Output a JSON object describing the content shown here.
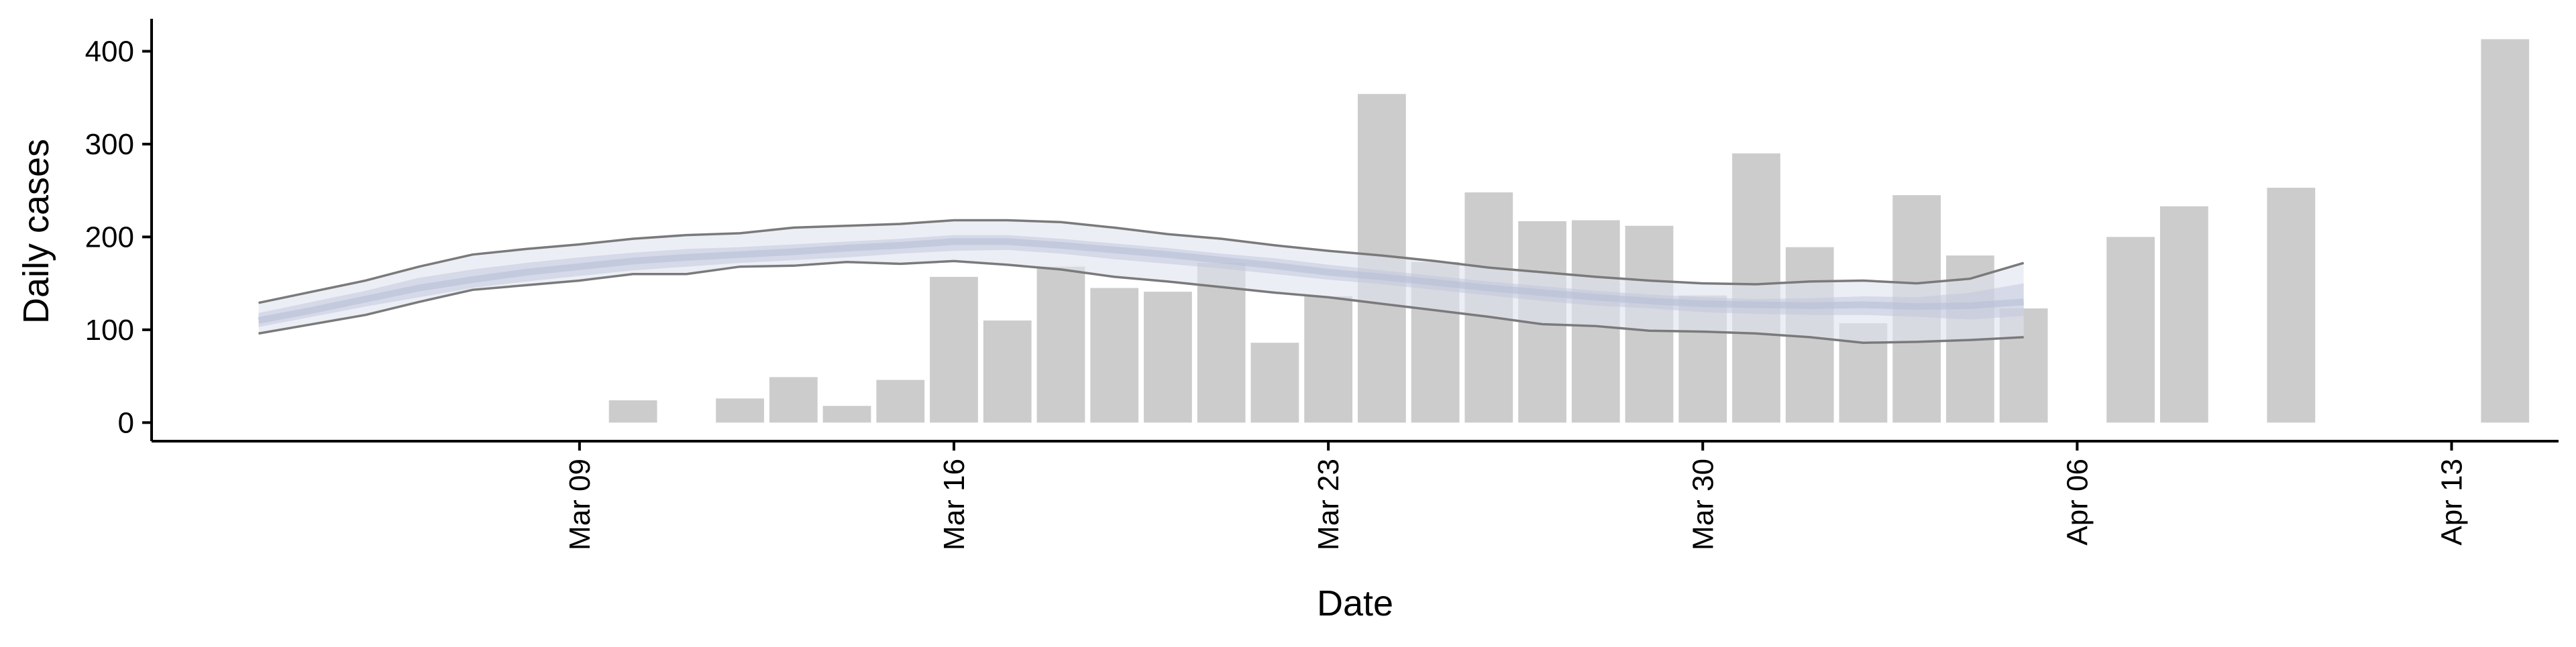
{
  "chart_data": {
    "type": "bar",
    "xlabel": "Date",
    "ylabel": "Daily cases",
    "ylim": [
      -20,
      435
    ],
    "xlim": [
      "2020-03-01",
      "2020-04-15"
    ],
    "yticks": [
      0,
      100,
      200,
      300,
      400
    ],
    "xticks": [
      {
        "date": "2020-03-09",
        "label": "Mar 09"
      },
      {
        "date": "2020-03-16",
        "label": "Mar 16"
      },
      {
        "date": "2020-03-23",
        "label": "Mar 23"
      },
      {
        "date": "2020-03-30",
        "label": "Mar 30"
      },
      {
        "date": "2020-04-06",
        "label": "Apr 06"
      },
      {
        "date": "2020-04-13",
        "label": "Apr 13"
      }
    ],
    "grid": false,
    "bars": [
      {
        "date": "2020-03-10",
        "value": 24
      },
      {
        "date": "2020-03-12",
        "value": 26
      },
      {
        "date": "2020-03-13",
        "value": 49
      },
      {
        "date": "2020-03-14",
        "value": 18
      },
      {
        "date": "2020-03-15",
        "value": 46
      },
      {
        "date": "2020-03-16",
        "value": 157
      },
      {
        "date": "2020-03-17",
        "value": 110
      },
      {
        "date": "2020-03-18",
        "value": 168
      },
      {
        "date": "2020-03-19",
        "value": 145
      },
      {
        "date": "2020-03-20",
        "value": 141
      },
      {
        "date": "2020-03-21",
        "value": 172
      },
      {
        "date": "2020-03-22",
        "value": 86
      },
      {
        "date": "2020-03-23",
        "value": 136
      },
      {
        "date": "2020-03-24",
        "value": 354
      },
      {
        "date": "2020-03-25",
        "value": 173
      },
      {
        "date": "2020-03-26",
        "value": 248
      },
      {
        "date": "2020-03-27",
        "value": 217
      },
      {
        "date": "2020-03-28",
        "value": 218
      },
      {
        "date": "2020-03-29",
        "value": 212
      },
      {
        "date": "2020-03-30",
        "value": 137
      },
      {
        "date": "2020-03-31",
        "value": 290
      },
      {
        "date": "2020-04-01",
        "value": 189
      },
      {
        "date": "2020-04-02",
        "value": 107
      },
      {
        "date": "2020-04-03",
        "value": 245
      },
      {
        "date": "2020-04-04",
        "value": 180
      },
      {
        "date": "2020-04-05",
        "value": 123
      },
      {
        "date": "2020-04-07",
        "value": 200
      },
      {
        "date": "2020-04-08",
        "value": 233
      },
      {
        "date": "2020-04-10",
        "value": 253
      },
      {
        "date": "2020-04-14",
        "value": 413
      }
    ],
    "estimate": {
      "dates": [
        "2020-03-03",
        "2020-03-04",
        "2020-03-05",
        "2020-03-06",
        "2020-03-07",
        "2020-03-08",
        "2020-03-09",
        "2020-03-10",
        "2020-03-11",
        "2020-03-12",
        "2020-03-13",
        "2020-03-14",
        "2020-03-15",
        "2020-03-16",
        "2020-03-17",
        "2020-03-18",
        "2020-03-19",
        "2020-03-20",
        "2020-03-21",
        "2020-03-22",
        "2020-03-23",
        "2020-03-24",
        "2020-03-25",
        "2020-03-26",
        "2020-03-27",
        "2020-03-28",
        "2020-03-29",
        "2020-03-30",
        "2020-03-31",
        "2020-04-01",
        "2020-04-02",
        "2020-04-03",
        "2020-04-04",
        "2020-04-05"
      ],
      "outer_upper": [
        129,
        141,
        153,
        168,
        181,
        187,
        192,
        198,
        202,
        204,
        210,
        212,
        214,
        218,
        218,
        216,
        210,
        203,
        198,
        191,
        185,
        180,
        174,
        167,
        162,
        157,
        153,
        150,
        149,
        152,
        153,
        150,
        155,
        172
      ],
      "inner_upper": [
        118,
        130,
        142,
        156,
        165,
        172,
        178,
        183,
        187,
        189,
        192,
        195,
        198,
        202,
        202,
        198,
        193,
        188,
        182,
        177,
        170,
        164,
        158,
        152,
        147,
        142,
        138,
        135,
        133,
        134,
        136,
        135,
        140,
        150
      ],
      "median": [
        110,
        121,
        133,
        145,
        154,
        162,
        168,
        174,
        178,
        181,
        184,
        188,
        191,
        195,
        195,
        191,
        186,
        181,
        175,
        169,
        162,
        157,
        151,
        145,
        140,
        135,
        131,
        128,
        127,
        126,
        127,
        125,
        126,
        130
      ],
      "inner_lower": [
        103,
        114,
        125,
        135,
        145,
        152,
        158,
        164,
        168,
        172,
        175,
        178,
        182,
        185,
        186,
        182,
        176,
        171,
        166,
        160,
        154,
        149,
        143,
        137,
        131,
        126,
        123,
        119,
        117,
        116,
        116,
        114,
        111,
        115
      ],
      "outer_lower": [
        96,
        106,
        116,
        130,
        143,
        148,
        153,
        160,
        160,
        168,
        169,
        173,
        171,
        174,
        170,
        165,
        157,
        152,
        146,
        140,
        135,
        128,
        121,
        114,
        106,
        104,
        99,
        98,
        96,
        92,
        86,
        87,
        89,
        92
      ]
    },
    "colors": {
      "bars": "#cccccc",
      "band_outer": "#dfe3ee",
      "band_inner": "#c2c9dd",
      "median": "#b8c0d6",
      "interval_lines": "#7a7a7a",
      "axis": "#000000"
    }
  }
}
